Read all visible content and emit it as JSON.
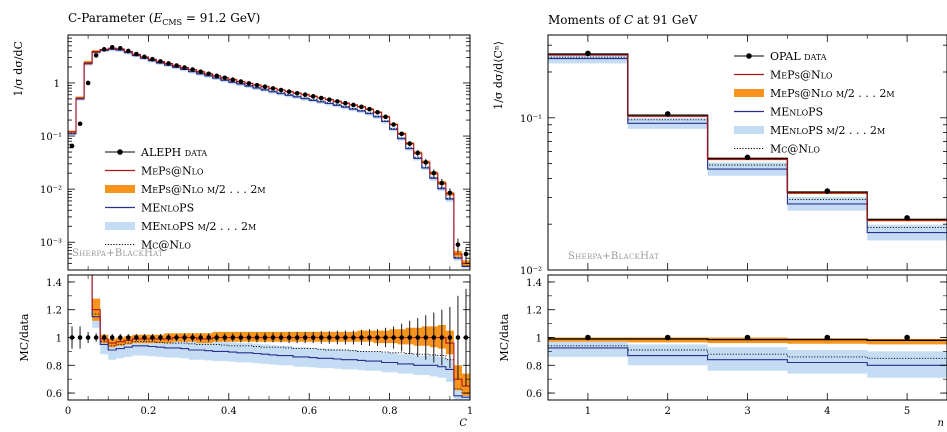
{
  "colors": {
    "data": "#000000",
    "meps_nlo": "#b0151b",
    "meps_nlo_band": "#f7941d",
    "menlops": "#2b2f8f",
    "menlops_band": "#c4ddf5",
    "mc_nlo": "#000000",
    "watermark": "#9a9a9a"
  },
  "chart_data": [
    {
      "type": "line",
      "title": "C-Parameter (E_CMS = 91.2 GeV)",
      "title_parts": {
        "prefix": "C-Parameter (",
        "sym": "E",
        "sub": "CMS",
        "suffix": " = 91.2 GeV)"
      },
      "ylabel": "1/σ dσ/dC",
      "xlabel": "C",
      "xlim": [
        0,
        1
      ],
      "ylim": [
        0.0003,
        8
      ],
      "yscale": "log",
      "ratio_ylabel": "MC/data",
      "ratio_ylim": [
        0.55,
        1.45
      ],
      "x_ticks": [
        "0",
        "0.2",
        "0.4",
        "0.6",
        "0.8",
        "1"
      ],
      "y_ticks": [
        "10⁻³",
        "10⁻²",
        "10⁻¹",
        "1"
      ],
      "ratio_ticks": [
        "0.6",
        "0.8",
        "1",
        "1.2",
        "1.4"
      ],
      "watermark": "Sherpa+BlackHat",
      "legend_position": "center-right",
      "legend": [
        {
          "key": "data",
          "label": "ALEPH data"
        },
        {
          "key": "meps",
          "label": "MePs@Nlo"
        },
        {
          "key": "meps_band",
          "label": "MePs@Nlo μ/2 . . . 2μ"
        },
        {
          "key": "menlops",
          "label": "MEnloPS"
        },
        {
          "key": "menlops_band",
          "label": "MEnloPS μ/2 . . . 2μ"
        },
        {
          "key": "mcnlo",
          "label": "Mc@Nlo"
        }
      ],
      "x": [
        0.01,
        0.03,
        0.05,
        0.07,
        0.09,
        0.11,
        0.13,
        0.15,
        0.17,
        0.19,
        0.21,
        0.23,
        0.25,
        0.27,
        0.29,
        0.31,
        0.33,
        0.35,
        0.37,
        0.39,
        0.41,
        0.43,
        0.45,
        0.47,
        0.49,
        0.51,
        0.53,
        0.55,
        0.57,
        0.59,
        0.61,
        0.63,
        0.65,
        0.67,
        0.69,
        0.71,
        0.73,
        0.75,
        0.77,
        0.79,
        0.81,
        0.83,
        0.85,
        0.87,
        0.89,
        0.91,
        0.93,
        0.95,
        0.97,
        0.99
      ],
      "series": [
        {
          "name": "ALEPH data",
          "values": [
            0.065,
            0.17,
            1.0,
            3.3,
            4.3,
            4.7,
            4.5,
            4.0,
            3.5,
            3.1,
            2.8,
            2.55,
            2.33,
            2.13,
            1.95,
            1.79,
            1.63,
            1.49,
            1.36,
            1.25,
            1.15,
            1.06,
            0.98,
            0.91,
            0.85,
            0.79,
            0.735,
            0.685,
            0.64,
            0.6,
            0.56,
            0.52,
            0.485,
            0.45,
            0.415,
            0.385,
            0.355,
            0.32,
            0.28,
            0.23,
            0.165,
            0.11,
            0.072,
            0.048,
            0.032,
            0.02,
            0.013,
            0.0085,
            0.0009,
            0.0006
          ]
        },
        {
          "name": "MePs@Nlo",
          "values": [
            0.12,
            0.52,
            2.4,
            3.9,
            4.25,
            4.5,
            4.35,
            3.9,
            3.45,
            3.08,
            2.78,
            2.53,
            2.31,
            2.12,
            1.94,
            1.78,
            1.62,
            1.48,
            1.36,
            1.25,
            1.15,
            1.06,
            0.98,
            0.91,
            0.85,
            0.79,
            0.735,
            0.685,
            0.64,
            0.6,
            0.56,
            0.52,
            0.485,
            0.45,
            0.415,
            0.385,
            0.355,
            0.32,
            0.28,
            0.23,
            0.165,
            0.11,
            0.072,
            0.048,
            0.032,
            0.02,
            0.013,
            0.0082,
            0.0006,
            0.0004
          ]
        },
        {
          "name": "MEnloPS",
          "values": [
            0.11,
            0.5,
            2.3,
            3.8,
            4.1,
            4.3,
            4.15,
            3.72,
            3.28,
            2.92,
            2.62,
            2.37,
            2.16,
            1.97,
            1.79,
            1.63,
            1.48,
            1.35,
            1.23,
            1.12,
            1.03,
            0.95,
            0.87,
            0.8,
            0.74,
            0.68,
            0.63,
            0.585,
            0.545,
            0.505,
            0.47,
            0.44,
            0.41,
            0.38,
            0.35,
            0.32,
            0.295,
            0.265,
            0.23,
            0.188,
            0.134,
            0.089,
            0.058,
            0.038,
            0.025,
            0.016,
            0.0102,
            0.0065,
            0.0005,
            0.00035
          ]
        }
      ],
      "ratio": {
        "data_err": [
          0.08,
          0.08,
          0.04,
          0.03,
          0.025,
          0.025,
          0.025,
          0.025,
          0.025,
          0.025,
          0.025,
          0.025,
          0.025,
          0.025,
          0.03,
          0.03,
          0.03,
          0.03,
          0.03,
          0.03,
          0.03,
          0.035,
          0.035,
          0.035,
          0.035,
          0.035,
          0.035,
          0.04,
          0.04,
          0.04,
          0.04,
          0.045,
          0.045,
          0.05,
          0.05,
          0.05,
          0.055,
          0.06,
          0.06,
          0.07,
          0.08,
          0.1,
          0.12,
          0.14,
          0.16,
          0.18,
          0.2,
          0.22,
          0.3,
          0.35
        ],
        "meps": [
          1.8,
          3.0,
          2.4,
          1.2,
          0.99,
          0.96,
          0.97,
          0.98,
          0.99,
          0.99,
          0.99,
          0.99,
          0.99,
          1.0,
          1.0,
          1.0,
          0.99,
          0.99,
          1.0,
          1.0,
          1.0,
          1.0,
          1.0,
          1.0,
          1.0,
          1.0,
          1.0,
          1.0,
          1.0,
          1.0,
          1.0,
          1.0,
          1.0,
          1.0,
          1.0,
          1.0,
          1.0,
          1.0,
          1.0,
          1.0,
          1.0,
          1.0,
          1.0,
          1.0,
          1.0,
          1.0,
          1.0,
          0.96,
          0.7,
          0.65
        ],
        "meps_lo": [
          1.7,
          2.8,
          2.2,
          1.12,
          0.96,
          0.93,
          0.94,
          0.95,
          0.96,
          0.96,
          0.96,
          0.96,
          0.96,
          0.97,
          0.97,
          0.97,
          0.96,
          0.96,
          0.97,
          0.97,
          0.97,
          0.97,
          0.97,
          0.97,
          0.97,
          0.97,
          0.97,
          0.97,
          0.97,
          0.97,
          0.97,
          0.97,
          0.97,
          0.97,
          0.97,
          0.97,
          0.97,
          0.97,
          0.96,
          0.96,
          0.96,
          0.95,
          0.95,
          0.94,
          0.94,
          0.93,
          0.92,
          0.88,
          0.62,
          0.58
        ],
        "meps_hi": [
          1.9,
          3.2,
          2.6,
          1.28,
          1.02,
          0.99,
          1.0,
          1.01,
          1.02,
          1.02,
          1.02,
          1.02,
          1.03,
          1.03,
          1.03,
          1.03,
          1.03,
          1.03,
          1.04,
          1.04,
          1.04,
          1.04,
          1.04,
          1.04,
          1.04,
          1.04,
          1.04,
          1.04,
          1.04,
          1.04,
          1.04,
          1.04,
          1.04,
          1.04,
          1.04,
          1.04,
          1.05,
          1.05,
          1.05,
          1.05,
          1.06,
          1.06,
          1.07,
          1.07,
          1.08,
          1.08,
          1.09,
          1.05,
          0.8,
          0.74
        ],
        "menlops": [
          1.7,
          2.9,
          2.3,
          1.15,
          0.95,
          0.91,
          0.92,
          0.93,
          0.94,
          0.94,
          0.935,
          0.93,
          0.925,
          0.925,
          0.92,
          0.91,
          0.91,
          0.905,
          0.9,
          0.9,
          0.895,
          0.89,
          0.89,
          0.885,
          0.88,
          0.875,
          0.87,
          0.87,
          0.86,
          0.86,
          0.855,
          0.85,
          0.85,
          0.845,
          0.84,
          0.84,
          0.835,
          0.83,
          0.83,
          0.82,
          0.82,
          0.81,
          0.81,
          0.8,
          0.8,
          0.8,
          0.79,
          0.77,
          0.58,
          0.57
        ],
        "menlops_lo": [
          1.6,
          2.7,
          2.1,
          1.07,
          0.88,
          0.84,
          0.85,
          0.86,
          0.87,
          0.87,
          0.865,
          0.86,
          0.855,
          0.855,
          0.85,
          0.84,
          0.84,
          0.835,
          0.83,
          0.83,
          0.825,
          0.82,
          0.82,
          0.815,
          0.81,
          0.805,
          0.8,
          0.8,
          0.79,
          0.79,
          0.785,
          0.78,
          0.78,
          0.775,
          0.77,
          0.77,
          0.765,
          0.76,
          0.76,
          0.75,
          0.75,
          0.74,
          0.74,
          0.73,
          0.73,
          0.72,
          0.71,
          0.68,
          0.52,
          0.52
        ],
        "menlops_hi": [
          1.8,
          3.1,
          2.5,
          1.23,
          1.02,
          0.98,
          0.99,
          1.0,
          1.01,
          1.01,
          1.005,
          1.0,
          0.995,
          0.995,
          0.99,
          0.98,
          0.98,
          0.975,
          0.97,
          0.97,
          0.965,
          0.96,
          0.96,
          0.955,
          0.95,
          0.945,
          0.94,
          0.94,
          0.93,
          0.93,
          0.925,
          0.92,
          0.92,
          0.915,
          0.91,
          0.91,
          0.905,
          0.9,
          0.9,
          0.89,
          0.89,
          0.88,
          0.88,
          0.87,
          0.87,
          0.87,
          0.86,
          0.84,
          0.64,
          0.62
        ],
        "mcnlo": [
          1.7,
          2.9,
          2.3,
          1.17,
          0.97,
          0.94,
          0.95,
          0.96,
          0.97,
          0.97,
          0.97,
          0.965,
          0.96,
          0.96,
          0.96,
          0.955,
          0.95,
          0.95,
          0.95,
          0.945,
          0.94,
          0.94,
          0.94,
          0.935,
          0.93,
          0.93,
          0.93,
          0.925,
          0.92,
          0.92,
          0.92,
          0.915,
          0.91,
          0.91,
          0.91,
          0.905,
          0.9,
          0.9,
          0.9,
          0.895,
          0.89,
          0.89,
          0.885,
          0.88,
          0.88,
          0.875,
          0.87,
          0.84,
          0.63,
          0.6
        ]
      }
    },
    {
      "type": "line",
      "title": "Moments of C at 91 GeV",
      "title_parts": {
        "prefix": "Moments of ",
        "sym": "C",
        "suffix": " at 91 GeV"
      },
      "ylabel": "1/σ dσ/d⟨Cⁿ⟩",
      "xlabel": "n",
      "xlim": [
        0.5,
        5.5
      ],
      "ylim": [
        0.01,
        0.35
      ],
      "yscale": "log",
      "ratio_ylabel": "MC/data",
      "ratio_ylim": [
        0.55,
        1.45
      ],
      "x_ticks": [
        "1",
        "2",
        "3",
        "4",
        "5"
      ],
      "y_ticks": [
        "10⁻²",
        "10⁻¹"
      ],
      "ratio_ticks": [
        "0.6",
        "0.8",
        "1",
        "1.2",
        "1.4"
      ],
      "watermark": "Sherpa+BlackHat",
      "legend_position": "top-right",
      "legend": [
        {
          "key": "data",
          "label": "OPAL data"
        },
        {
          "key": "meps",
          "label": "MePs@Nlo"
        },
        {
          "key": "meps_band",
          "label": "MePs@Nlo μ/2 . . . 2μ"
        },
        {
          "key": "menlops",
          "label": "MEnloPS"
        },
        {
          "key": "menlops_band",
          "label": "MEnloPS μ/2 . . . 2μ"
        },
        {
          "key": "mcnlo",
          "label": "Mc@Nlo"
        }
      ],
      "x": [
        1,
        2,
        3,
        4,
        5
      ],
      "series": [
        {
          "name": "OPAL data",
          "values": [
            0.265,
            0.106,
            0.055,
            0.033,
            0.022
          ]
        },
        {
          "name": "MePs@Nlo",
          "values": [
            0.262,
            0.104,
            0.054,
            0.0325,
            0.0215
          ]
        },
        {
          "name": "MEnloPS",
          "values": [
            0.245,
            0.092,
            0.046,
            0.0272,
            0.0176
          ]
        },
        {
          "name": "Mc@Nlo",
          "values": [
            0.25,
            0.097,
            0.049,
            0.029,
            0.019
          ]
        }
      ],
      "ratio": {
        "data_err": [
          0.01,
          0.01,
          0.01,
          0.01,
          0.01
        ],
        "meps": [
          0.99,
          0.99,
          0.985,
          0.985,
          0.98
        ],
        "meps_lo": [
          0.97,
          0.965,
          0.96,
          0.955,
          0.95
        ],
        "meps_hi": [
          1.0,
          1.0,
          1.0,
          0.995,
          0.99
        ],
        "menlops": [
          0.925,
          0.87,
          0.84,
          0.82,
          0.8
        ],
        "menlops_lo": [
          0.86,
          0.8,
          0.76,
          0.74,
          0.71
        ],
        "menlops_hi": [
          0.97,
          0.95,
          0.93,
          0.91,
          0.9
        ],
        "mcnlo": [
          0.94,
          0.91,
          0.88,
          0.86,
          0.85
        ]
      }
    }
  ]
}
